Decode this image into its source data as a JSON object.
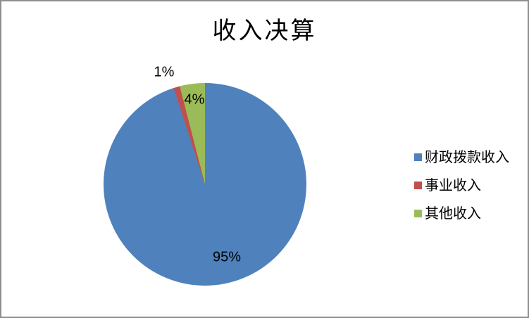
{
  "chart_data": {
    "type": "pie",
    "title": "收入决算",
    "categories": [
      "财政拨款收入",
      "事业收入",
      "其他收入"
    ],
    "values": [
      95,
      1,
      4
    ],
    "unit": "percent",
    "colors": [
      "#4F81BD",
      "#C0504D",
      "#9BBB59"
    ],
    "data_labels": [
      "95%",
      "1%",
      "4%"
    ],
    "start_angle_deg": 0,
    "direction": "clockwise",
    "legend_position": "right",
    "frame_border_color": "#8F8F8F",
    "background": "#FFFFFF"
  }
}
